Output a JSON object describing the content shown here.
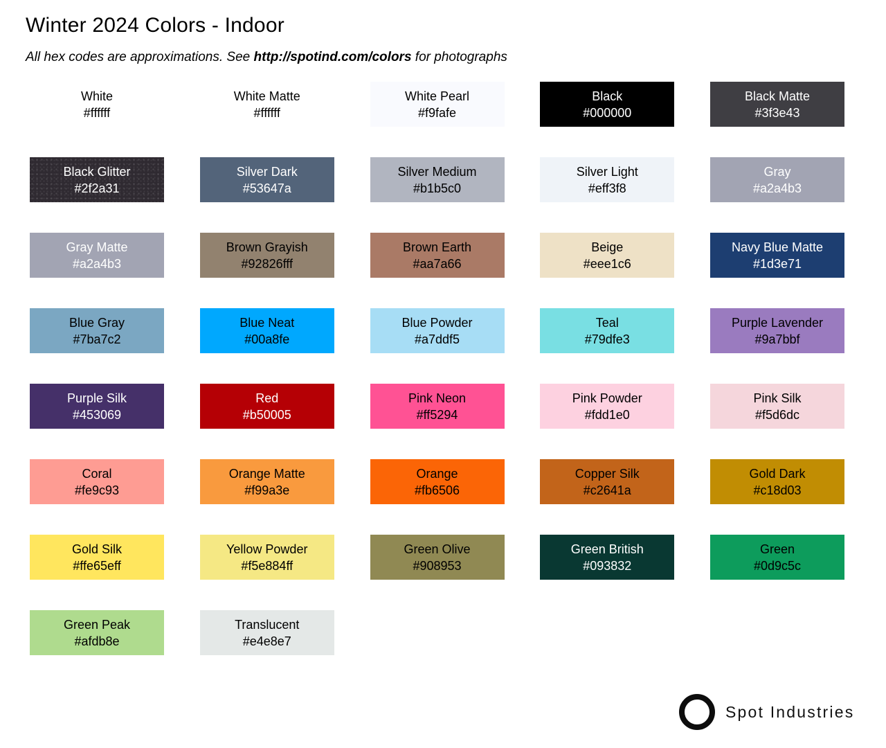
{
  "header": {
    "title": "Winter 2024 Colors - Indoor",
    "subtitle_prefix": "All hex codes are approximations. See ",
    "subtitle_link": "http://spotind.com/colors",
    "subtitle_suffix": " for photographs"
  },
  "palette": {
    "page_bg": "#ffffff",
    "dark_label_color": "#000000",
    "light_label_color": "#ffffff"
  },
  "swatches": [
    {
      "name": "White",
      "hex": "#ffffff",
      "bg": "#ffffff",
      "text": "#000000"
    },
    {
      "name": "White Matte",
      "hex": "#ffffff",
      "bg": "#ffffff",
      "text": "#000000"
    },
    {
      "name": "White Pearl",
      "hex": "#f9fafe",
      "bg": "#f9fafe",
      "text": "#000000"
    },
    {
      "name": "Black",
      "hex": "#000000",
      "bg": "#000000",
      "text": "#ffffff"
    },
    {
      "name": "Black Matte",
      "hex": "#3f3e43",
      "bg": "#3f3e43",
      "text": "#ffffff"
    },
    {
      "name": "Black Glitter",
      "hex": "#2f2a31",
      "bg": "#2f2a31",
      "text": "#ffffff",
      "texture": "glitter"
    },
    {
      "name": "Silver Dark",
      "hex": "#53647a",
      "bg": "#53647a",
      "text": "#ffffff"
    },
    {
      "name": "Silver Medium",
      "hex": "#b1b5c0",
      "bg": "#b1b5c0",
      "text": "#000000"
    },
    {
      "name": "Silver Light",
      "hex": "#eff3f8",
      "bg": "#eff3f8",
      "text": "#000000"
    },
    {
      "name": "Gray",
      "hex": "#a2a4b3",
      "bg": "#a2a4b3",
      "text": "#ffffff"
    },
    {
      "name": "Gray Matte",
      "hex": "#a2a4b3",
      "bg": "#a2a4b3",
      "text": "#ffffff"
    },
    {
      "name": "Brown Grayish",
      "hex": "#92826fff",
      "bg": "#92826f",
      "text": "#000000"
    },
    {
      "name": "Brown Earth",
      "hex": "#aa7a66",
      "bg": "#aa7a66",
      "text": "#000000"
    },
    {
      "name": "Beige",
      "hex": "#eee1c6",
      "bg": "#eee1c6",
      "text": "#000000"
    },
    {
      "name": "Navy Blue Matte",
      "hex": "#1d3e71",
      "bg": "#1d3e71",
      "text": "#ffffff"
    },
    {
      "name": "Blue Gray",
      "hex": "#7ba7c2",
      "bg": "#7ba7c2",
      "text": "#000000"
    },
    {
      "name": "Blue Neat",
      "hex": "#00a8fe",
      "bg": "#00a8fe",
      "text": "#000000"
    },
    {
      "name": "Blue Powder",
      "hex": "#a7ddf5",
      "bg": "#a7ddf5",
      "text": "#000000"
    },
    {
      "name": "Teal",
      "hex": "#79dfe3",
      "bg": "#79dfe3",
      "text": "#000000"
    },
    {
      "name": "Purple Lavender",
      "hex": "#9a7bbf",
      "bg": "#9a7bbf",
      "text": "#000000"
    },
    {
      "name": "Purple Silk",
      "hex": "#453069",
      "bg": "#453069",
      "text": "#ffffff"
    },
    {
      "name": "Red",
      "hex": "#b50005",
      "bg": "#b50005",
      "text": "#ffffff"
    },
    {
      "name": "Pink Neon",
      "hex": "#ff5294",
      "bg": "#ff5294",
      "text": "#000000"
    },
    {
      "name": "Pink Powder",
      "hex": "#fdd1e0",
      "bg": "#fdd1e0",
      "text": "#000000"
    },
    {
      "name": "Pink Silk",
      "hex": "#f5d6dc",
      "bg": "#f5d6dc",
      "text": "#000000"
    },
    {
      "name": "Coral",
      "hex": "#fe9c93",
      "bg": "#fe9c93",
      "text": "#000000"
    },
    {
      "name": "Orange Matte",
      "hex": "#f99a3e",
      "bg": "#f99a3e",
      "text": "#000000"
    },
    {
      "name": "Orange",
      "hex": "#fb6506",
      "bg": "#fb6506",
      "text": "#000000"
    },
    {
      "name": "Copper Silk",
      "hex": "#c2641a",
      "bg": "#c2641a",
      "text": "#000000"
    },
    {
      "name": "Gold Dark",
      "hex": "#c18d03",
      "bg": "#c18d03",
      "text": "#000000"
    },
    {
      "name": "Gold Silk",
      "hex": "#ffe65eff",
      "bg": "#ffe65e",
      "text": "#000000"
    },
    {
      "name": "Yellow Powder",
      "hex": "#f5e884ff",
      "bg": "#f5e884",
      "text": "#000000"
    },
    {
      "name": "Green Olive",
      "hex": "#908953",
      "bg": "#908953",
      "text": "#000000"
    },
    {
      "name": "Green British",
      "hex": "#093832",
      "bg": "#093832",
      "text": "#ffffff"
    },
    {
      "name": "Green",
      "hex": "#0d9c5c",
      "bg": "#0d9c5c",
      "text": "#000000"
    },
    {
      "name": "Green Peak",
      "hex": "#afdb8e",
      "bg": "#afdb8e",
      "text": "#000000"
    },
    {
      "name": "Translucent",
      "hex": "#e4e8e7",
      "bg": "#e4e8e7",
      "text": "#000000"
    }
  ],
  "footer": {
    "brand": "Spot Industries",
    "logo_icon": "circle-ring-icon"
  }
}
